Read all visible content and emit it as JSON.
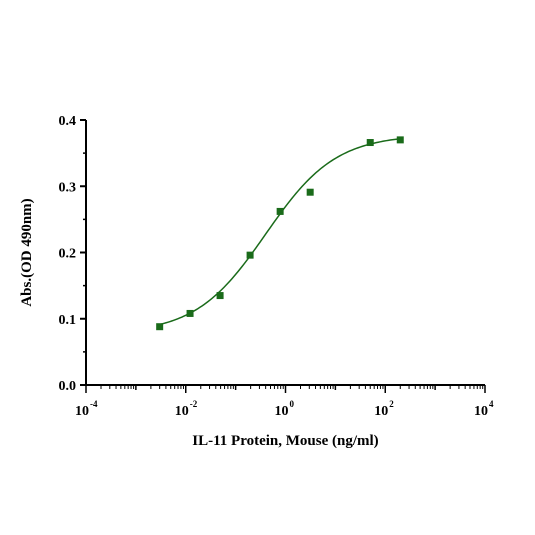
{
  "chart_data": {
    "type": "scatter",
    "title": "",
    "xlabel": "IL-11 Protein, Mouse (ng/ml)",
    "ylabel": "Abs.(OD 490nm)",
    "xscale": "log",
    "xlim": [
      0.0001,
      10000
    ],
    "ylim": [
      0,
      0.4
    ],
    "x_ticks": [
      {
        "base": "10",
        "exp": "-4",
        "value": 0.0001
      },
      {
        "base": "10",
        "exp": "-2",
        "value": 0.01
      },
      {
        "base": "10",
        "exp": "0",
        "value": 1
      },
      {
        "base": "10",
        "exp": "2",
        "value": 100
      },
      {
        "base": "10",
        "exp": "4",
        "value": 10000
      }
    ],
    "y_ticks": [
      {
        "label": "0.0",
        "value": 0
      },
      {
        "label": "0.1",
        "value": 0.1
      },
      {
        "label": "0.2",
        "value": 0.2
      },
      {
        "label": "0.3",
        "value": 0.3
      },
      {
        "label": "0.4",
        "value": 0.4
      }
    ],
    "grid": false,
    "series": [
      {
        "color": "#1a6b1a",
        "marker": "square",
        "fit": "four-parameter logistic",
        "x": [
          0.003,
          0.0122,
          0.0488,
          0.195,
          0.781,
          3.125,
          50,
          200
        ],
        "y": [
          0.088,
          0.108,
          0.135,
          0.196,
          0.262,
          0.291,
          0.366,
          0.37
        ]
      }
    ]
  }
}
